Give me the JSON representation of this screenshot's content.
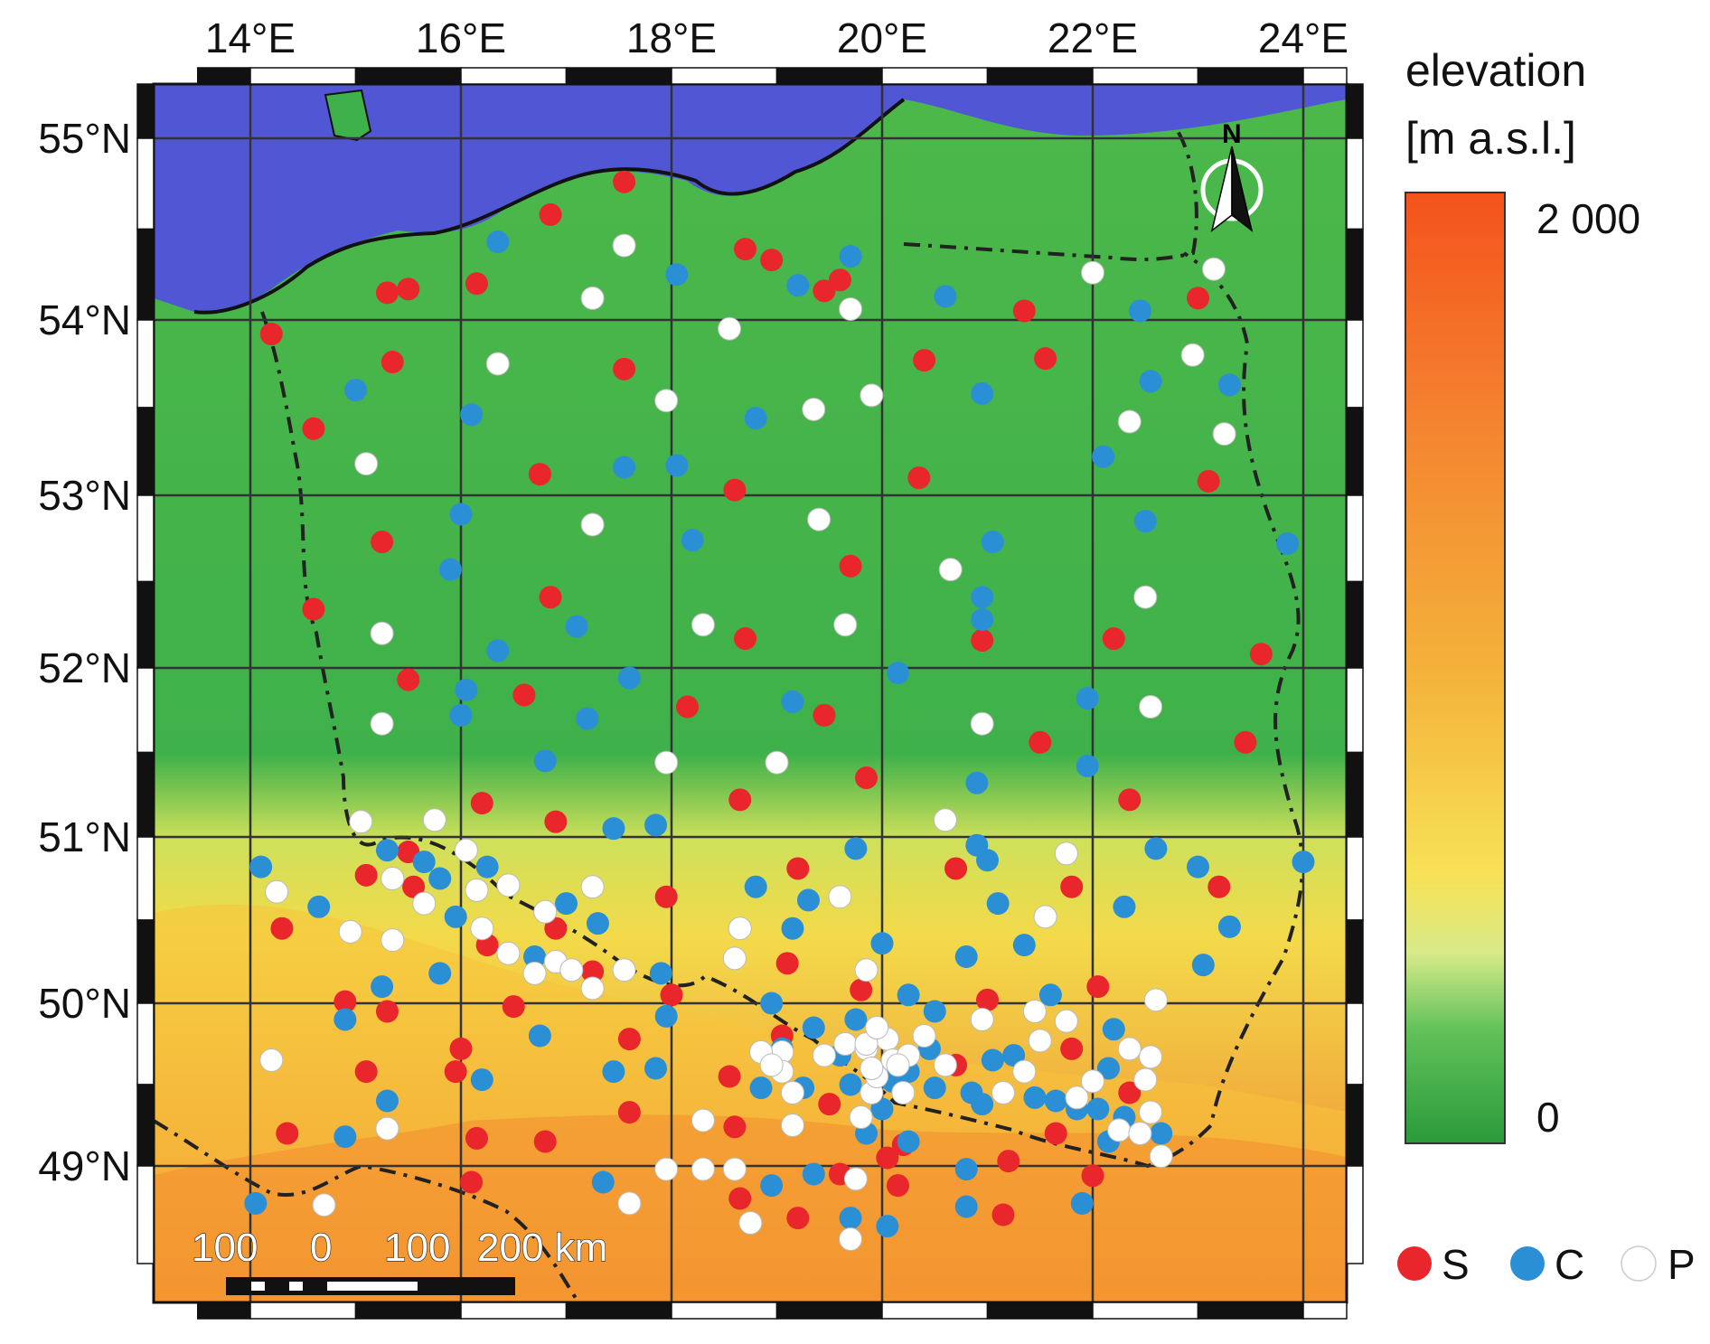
{
  "map": {
    "axes": {
      "lon_labels": [
        "14°E",
        "16°E",
        "18°E",
        "20°E",
        "22°E",
        "24°E"
      ],
      "lat_labels": [
        "55°N",
        "54°N",
        "53°N",
        "52°N",
        "51°N",
        "50°N",
        "49°N"
      ]
    },
    "colors": {
      "sea": "#5157d4",
      "land_low": "#3cb24a",
      "land_mid": "#f4e44c",
      "land_high": "#f25c1a",
      "border": "#222222",
      "grid": "#333333"
    },
    "colorbar": {
      "title_line1": "elevation",
      "title_line2": "[m a.s.l.]",
      "max_label": "2 000",
      "min_label": "0"
    },
    "north_arrow": {
      "label": "N",
      "icon": "north-arrow-icon"
    },
    "scalebar": {
      "labels": [
        "100",
        "0",
        "100",
        "200 km"
      ]
    },
    "legend": [
      {
        "label": "S",
        "color": "#e8262b"
      },
      {
        "label": "C",
        "color": "#2b8fd6"
      },
      {
        "label": "P",
        "color": "#ffffff"
      }
    ]
  },
  "stations": {
    "S": [
      [
        14.2,
        53.92
      ],
      [
        14.6,
        53.38
      ],
      [
        15.3,
        54.15
      ],
      [
        15.5,
        54.17
      ],
      [
        16.15,
        54.2
      ],
      [
        16.85,
        54.58
      ],
      [
        17.55,
        54.76
      ],
      [
        18.7,
        54.39
      ],
      [
        18.95,
        54.33
      ],
      [
        19.45,
        54.16
      ],
      [
        19.6,
        54.22
      ],
      [
        21.35,
        54.05
      ],
      [
        23.0,
        54.12
      ],
      [
        15.35,
        53.76
      ],
      [
        17.55,
        53.72
      ],
      [
        20.4,
        53.77
      ],
      [
        21.55,
        53.78
      ],
      [
        16.75,
        53.12
      ],
      [
        18.6,
        53.03
      ],
      [
        20.35,
        53.1
      ],
      [
        23.1,
        53.08
      ],
      [
        15.25,
        52.73
      ],
      [
        14.6,
        52.34
      ],
      [
        16.85,
        52.41
      ],
      [
        19.7,
        52.59
      ],
      [
        18.7,
        52.17
      ],
      [
        20.95,
        52.16
      ],
      [
        22.2,
        52.17
      ],
      [
        23.6,
        52.08
      ],
      [
        15.5,
        51.93
      ],
      [
        16.6,
        51.84
      ],
      [
        18.15,
        51.77
      ],
      [
        19.45,
        51.72
      ],
      [
        21.5,
        51.56
      ],
      [
        23.45,
        51.56
      ],
      [
        19.85,
        51.35
      ],
      [
        16.2,
        51.2
      ],
      [
        16.9,
        51.09
      ],
      [
        18.65,
        51.22
      ],
      [
        22.35,
        51.22
      ],
      [
        15.5,
        50.91
      ],
      [
        15.1,
        50.77
      ],
      [
        15.55,
        50.7
      ],
      [
        17.95,
        50.64
      ],
      [
        19.2,
        50.81
      ],
      [
        20.7,
        50.81
      ],
      [
        21.8,
        50.7
      ],
      [
        23.2,
        50.7
      ],
      [
        14.3,
        50.45
      ],
      [
        16.25,
        50.35
      ],
      [
        16.9,
        50.45
      ],
      [
        17.25,
        50.19
      ],
      [
        19.1,
        50.24
      ],
      [
        14.9,
        50.01
      ],
      [
        15.3,
        49.95
      ],
      [
        16.5,
        49.98
      ],
      [
        18.0,
        50.05
      ],
      [
        19.8,
        50.08
      ],
      [
        21.0,
        50.02
      ],
      [
        22.05,
        50.1
      ],
      [
        16.0,
        49.72
      ],
      [
        17.6,
        49.78
      ],
      [
        19.05,
        49.8
      ],
      [
        20.7,
        49.62
      ],
      [
        21.8,
        49.72
      ],
      [
        15.1,
        49.58
      ],
      [
        15.95,
        49.58
      ],
      [
        17.6,
        49.33
      ],
      [
        18.55,
        49.55
      ],
      [
        19.5,
        49.38
      ],
      [
        21.65,
        49.2
      ],
      [
        14.35,
        49.2
      ],
      [
        16.15,
        49.17
      ],
      [
        16.8,
        49.15
      ],
      [
        18.6,
        49.24
      ],
      [
        20.05,
        49.05
      ],
      [
        21.2,
        49.03
      ],
      [
        22.0,
        48.94
      ],
      [
        22.35,
        49.45
      ],
      [
        16.1,
        48.9
      ],
      [
        18.65,
        48.8
      ],
      [
        19.2,
        48.68
      ],
      [
        20.15,
        48.88
      ],
      [
        21.15,
        48.7
      ],
      [
        19.6,
        48.95
      ],
      [
        20.2,
        49.13
      ]
    ],
    "C": [
      [
        16.35,
        54.43
      ],
      [
        18.05,
        54.25
      ],
      [
        19.2,
        54.19
      ],
      [
        19.7,
        54.35
      ],
      [
        20.6,
        54.13
      ],
      [
        22.45,
        54.05
      ],
      [
        15.0,
        53.6
      ],
      [
        16.1,
        53.46
      ],
      [
        18.8,
        53.44
      ],
      [
        20.95,
        53.58
      ],
      [
        22.1,
        53.22
      ],
      [
        22.55,
        53.65
      ],
      [
        23.3,
        53.63
      ],
      [
        17.55,
        53.16
      ],
      [
        18.05,
        53.17
      ],
      [
        16.0,
        52.89
      ],
      [
        18.2,
        52.74
      ],
      [
        21.05,
        52.73
      ],
      [
        22.5,
        52.85
      ],
      [
        23.85,
        52.72
      ],
      [
        15.9,
        52.57
      ],
      [
        17.1,
        52.24
      ],
      [
        20.95,
        52.41
      ],
      [
        20.95,
        52.28
      ],
      [
        16.35,
        52.1
      ],
      [
        16.05,
        51.87
      ],
      [
        16.0,
        51.72
      ],
      [
        17.2,
        51.7
      ],
      [
        17.6,
        51.94
      ],
      [
        19.15,
        51.8
      ],
      [
        20.15,
        51.97
      ],
      [
        21.95,
        51.82
      ],
      [
        16.8,
        51.45
      ],
      [
        17.45,
        51.05
      ],
      [
        17.85,
        51.07
      ],
      [
        20.9,
        51.32
      ],
      [
        21.95,
        51.42
      ],
      [
        14.1,
        50.82
      ],
      [
        15.3,
        50.92
      ],
      [
        15.65,
        50.85
      ],
      [
        15.8,
        50.75
      ],
      [
        16.25,
        50.82
      ],
      [
        17.0,
        50.6
      ],
      [
        19.75,
        50.93
      ],
      [
        20.9,
        50.95
      ],
      [
        21.0,
        50.86
      ],
      [
        22.6,
        50.93
      ],
      [
        23.0,
        50.82
      ],
      [
        18.8,
        50.7
      ],
      [
        19.3,
        50.62
      ],
      [
        21.1,
        50.6
      ],
      [
        14.65,
        50.58
      ],
      [
        15.95,
        50.52
      ],
      [
        17.3,
        50.48
      ],
      [
        19.15,
        50.45
      ],
      [
        22.3,
        50.58
      ],
      [
        23.3,
        50.46
      ],
      [
        15.25,
        50.1
      ],
      [
        15.8,
        50.18
      ],
      [
        16.7,
        50.28
      ],
      [
        17.9,
        50.18
      ],
      [
        20.0,
        50.36
      ],
      [
        20.8,
        50.28
      ],
      [
        21.35,
        50.35
      ],
      [
        23.05,
        50.23
      ],
      [
        14.9,
        49.9
      ],
      [
        16.75,
        49.8
      ],
      [
        17.95,
        49.92
      ],
      [
        18.95,
        50.0
      ],
      [
        19.75,
        49.9
      ],
      [
        20.25,
        50.05
      ],
      [
        20.5,
        49.95
      ],
      [
        21.6,
        50.05
      ],
      [
        22.2,
        49.84
      ],
      [
        16.2,
        49.53
      ],
      [
        17.45,
        49.58
      ],
      [
        17.85,
        49.6
      ],
      [
        19.05,
        49.72
      ],
      [
        19.35,
        49.85
      ],
      [
        19.6,
        49.68
      ],
      [
        19.7,
        49.5
      ],
      [
        20.0,
        49.35
      ],
      [
        20.1,
        49.52
      ],
      [
        20.25,
        49.58
      ],
      [
        20.45,
        49.72
      ],
      [
        20.5,
        49.48
      ],
      [
        20.85,
        49.45
      ],
      [
        21.05,
        49.65
      ],
      [
        20.95,
        49.38
      ],
      [
        21.25,
        49.68
      ],
      [
        21.45,
        49.42
      ],
      [
        21.85,
        49.35
      ],
      [
        22.15,
        49.6
      ],
      [
        22.05,
        49.35
      ],
      [
        22.3,
        49.3
      ],
      [
        22.65,
        49.2
      ],
      [
        14.9,
        49.18
      ],
      [
        15.3,
        49.4
      ],
      [
        18.85,
        49.48
      ],
      [
        19.25,
        49.48
      ],
      [
        19.85,
        49.2
      ],
      [
        20.25,
        49.15
      ],
      [
        19.35,
        48.95
      ],
      [
        20.8,
        48.98
      ],
      [
        21.65,
        49.4
      ],
      [
        17.35,
        48.9
      ],
      [
        18.95,
        48.88
      ],
      [
        20.05,
        48.63
      ],
      [
        20.8,
        48.75
      ],
      [
        22.15,
        49.15
      ],
      [
        14.05,
        48.77
      ],
      [
        19.7,
        48.68
      ],
      [
        21.9,
        48.77
      ],
      [
        24.0,
        50.85
      ]
    ],
    "P": [
      [
        17.55,
        54.41
      ],
      [
        17.25,
        54.12
      ],
      [
        18.55,
        53.95
      ],
      [
        19.7,
        54.06
      ],
      [
        22.0,
        54.26
      ],
      [
        23.15,
        54.28
      ],
      [
        22.95,
        53.8
      ],
      [
        23.25,
        53.35
      ],
      [
        16.35,
        53.75
      ],
      [
        17.95,
        53.54
      ],
      [
        19.35,
        53.49
      ],
      [
        19.9,
        53.57
      ],
      [
        22.35,
        53.42
      ],
      [
        15.1,
        53.18
      ],
      [
        17.25,
        52.83
      ],
      [
        19.4,
        52.86
      ],
      [
        20.65,
        52.57
      ],
      [
        22.5,
        52.41
      ],
      [
        15.25,
        52.2
      ],
      [
        18.3,
        52.25
      ],
      [
        19.65,
        52.25
      ],
      [
        15.25,
        51.67
      ],
      [
        17.95,
        51.44
      ],
      [
        19.0,
        51.44
      ],
      [
        20.95,
        51.67
      ],
      [
        22.55,
        51.77
      ],
      [
        20.6,
        51.1
      ],
      [
        15.05,
        51.09
      ],
      [
        15.75,
        51.1
      ],
      [
        21.75,
        50.9
      ],
      [
        15.35,
        50.75
      ],
      [
        15.65,
        50.6
      ],
      [
        16.05,
        50.92
      ],
      [
        16.15,
        50.68
      ],
      [
        16.45,
        50.71
      ],
      [
        17.25,
        50.7
      ],
      [
        19.6,
        50.64
      ],
      [
        14.25,
        50.67
      ],
      [
        14.95,
        50.43
      ],
      [
        15.35,
        50.38
      ],
      [
        16.2,
        50.45
      ],
      [
        16.45,
        50.3
      ],
      [
        16.8,
        50.55
      ],
      [
        16.7,
        50.18
      ],
      [
        16.9,
        50.25
      ],
      [
        17.05,
        50.2
      ],
      [
        17.25,
        50.09
      ],
      [
        17.55,
        50.2
      ],
      [
        18.65,
        50.45
      ],
      [
        18.6,
        50.27
      ],
      [
        19.85,
        50.2
      ],
      [
        21.55,
        50.52
      ],
      [
        22.6,
        50.02
      ],
      [
        20.95,
        49.9
      ],
      [
        21.75,
        49.89
      ],
      [
        21.5,
        49.77
      ],
      [
        22.35,
        49.72
      ],
      [
        22.55,
        49.67
      ],
      [
        22.5,
        49.53
      ],
      [
        22.0,
        49.52
      ],
      [
        14.2,
        49.65
      ],
      [
        15.3,
        49.23
      ],
      [
        18.3,
        49.28
      ],
      [
        17.95,
        48.98
      ],
      [
        18.3,
        48.98
      ],
      [
        18.6,
        48.98
      ],
      [
        19.05,
        49.7
      ],
      [
        19.05,
        49.58
      ],
      [
        19.15,
        49.45
      ],
      [
        19.45,
        49.68
      ],
      [
        19.65,
        49.75
      ],
      [
        19.85,
        49.72
      ],
      [
        20.05,
        49.78
      ],
      [
        20.1,
        49.65
      ],
      [
        20.2,
        49.45
      ],
      [
        20.4,
        49.8
      ],
      [
        20.25,
        49.68
      ],
      [
        19.9,
        49.45
      ],
      [
        19.8,
        49.3
      ],
      [
        19.95,
        49.55
      ],
      [
        20.6,
        49.62
      ],
      [
        21.35,
        49.58
      ],
      [
        21.45,
        49.95
      ],
      [
        21.15,
        49.45
      ],
      [
        21.85,
        49.42
      ],
      [
        22.25,
        49.22
      ],
      [
        22.45,
        49.2
      ],
      [
        22.55,
        49.33
      ],
      [
        22.65,
        49.06
      ],
      [
        19.15,
        49.25
      ],
      [
        19.75,
        48.92
      ],
      [
        18.75,
        48.65
      ],
      [
        19.7,
        48.55
      ],
      [
        17.6,
        48.77
      ],
      [
        14.7,
        48.76
      ],
      [
        19.85,
        49.75
      ],
      [
        19.95,
        49.85
      ],
      [
        20.15,
        49.62
      ],
      [
        19.9,
        49.6
      ],
      [
        18.85,
        49.7
      ],
      [
        18.95,
        49.62
      ]
    ]
  }
}
